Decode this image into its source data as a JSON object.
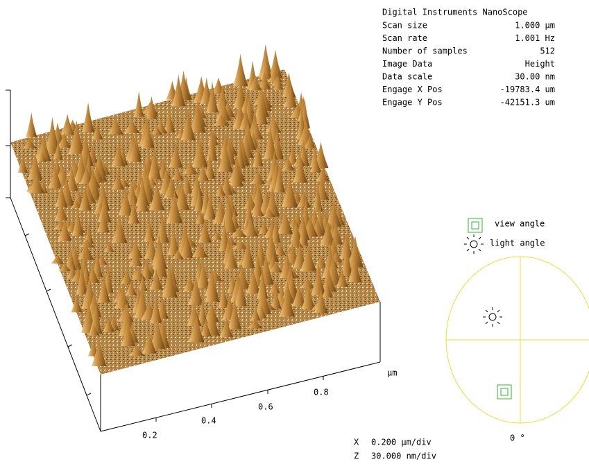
{
  "info": {
    "title": "Digital Instruments NanoScope",
    "rows": [
      [
        "Scan size",
        "1.000 µm"
      ],
      [
        "Scan rate",
        "1.001 Hz"
      ],
      [
        "Number of samples",
        "512"
      ],
      [
        "Image Data",
        "Height"
      ],
      [
        "Data scale",
        "30.00 nm"
      ],
      [
        "Engage X Pos",
        "-19783.4 um"
      ],
      [
        "Engage Y Pos",
        "-42151.3 um"
      ]
    ]
  },
  "legend": {
    "view": "view angle",
    "light": "light angle"
  },
  "axis": {
    "ticks": [
      "0.2",
      "0.4",
      "0.6",
      "0.8"
    ],
    "unit": "µm"
  },
  "angle": "0 °",
  "scale": [
    {
      "axis": "X",
      "value": "0.200 µm/div"
    },
    {
      "axis": "Z",
      "value": "30.000 nm/div"
    }
  ]
}
